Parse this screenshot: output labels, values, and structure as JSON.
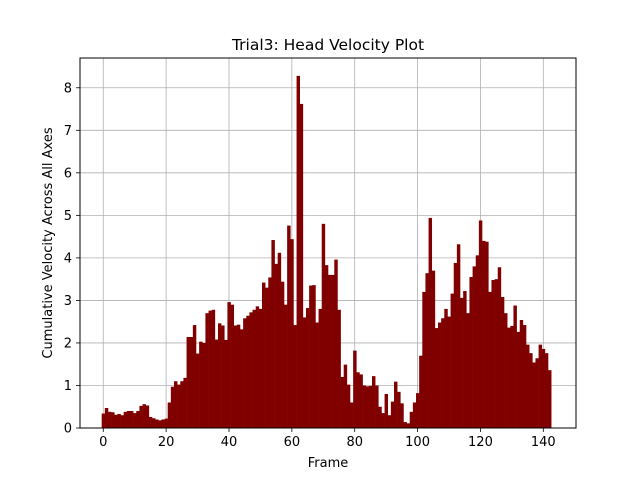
{
  "chart_data": {
    "type": "bar",
    "title": "Trial3: Head Velocity Plot",
    "xlabel": "Frame",
    "ylabel": "Cumulative Velocity Across All Axes",
    "xlim": [
      -7.4,
      150.4
    ],
    "ylim": [
      0,
      8.7
    ],
    "xticks": [
      0,
      20,
      40,
      60,
      80,
      100,
      120,
      140
    ],
    "yticks": [
      0,
      1,
      2,
      3,
      4,
      5,
      6,
      7,
      8
    ],
    "grid": true,
    "color": "#800000",
    "x_start": 0,
    "values": [
      0.34,
      0.47,
      0.38,
      0.37,
      0.31,
      0.33,
      0.3,
      0.38,
      0.4,
      0.4,
      0.35,
      0.4,
      0.52,
      0.56,
      0.53,
      0.26,
      0.23,
      0.2,
      0.18,
      0.2,
      0.22,
      0.6,
      0.97,
      1.1,
      1.02,
      1.1,
      1.18,
      2.14,
      2.14,
      2.42,
      1.75,
      2.03,
      2.0,
      2.7,
      2.76,
      2.78,
      2.08,
      2.46,
      2.41,
      2.07,
      2.96,
      2.9,
      2.41,
      2.43,
      2.32,
      2.58,
      2.64,
      2.72,
      2.78,
      2.86,
      2.8,
      3.42,
      3.3,
      3.54,
      4.42,
      3.86,
      4.12,
      3.44,
      2.9,
      4.76,
      4.44,
      2.42,
      8.28,
      7.62,
      2.6,
      2.82,
      3.35,
      3.36,
      2.48,
      2.8,
      4.8,
      3.83,
      3.6,
      3.6,
      3.96,
      2.78,
      1.2,
      1.49,
      1.02,
      0.6,
      1.82,
      1.31,
      1.26,
      1.0,
      0.98,
      0.99,
      1.22,
      1.0,
      0.5,
      0.35,
      0.8,
      0.3,
      0.62,
      1.09,
      0.85,
      0.58,
      0.14,
      0.11,
      0.38,
      0.6,
      0.82,
      1.7,
      3.2,
      3.64,
      4.94,
      3.7,
      2.35,
      2.48,
      2.58,
      2.8,
      2.62,
      3.16,
      3.88,
      4.32,
      3.06,
      3.22,
      2.7,
      3.55,
      3.8,
      4.06,
      4.88,
      4.4,
      4.38,
      3.2,
      3.48,
      3.5,
      3.78,
      3.08,
      2.7,
      2.36,
      2.4,
      2.88,
      2.26,
      2.54,
      2.42,
      1.96,
      1.76,
      1.54,
      1.64,
      1.96,
      1.86,
      1.76,
      1.36
    ]
  }
}
